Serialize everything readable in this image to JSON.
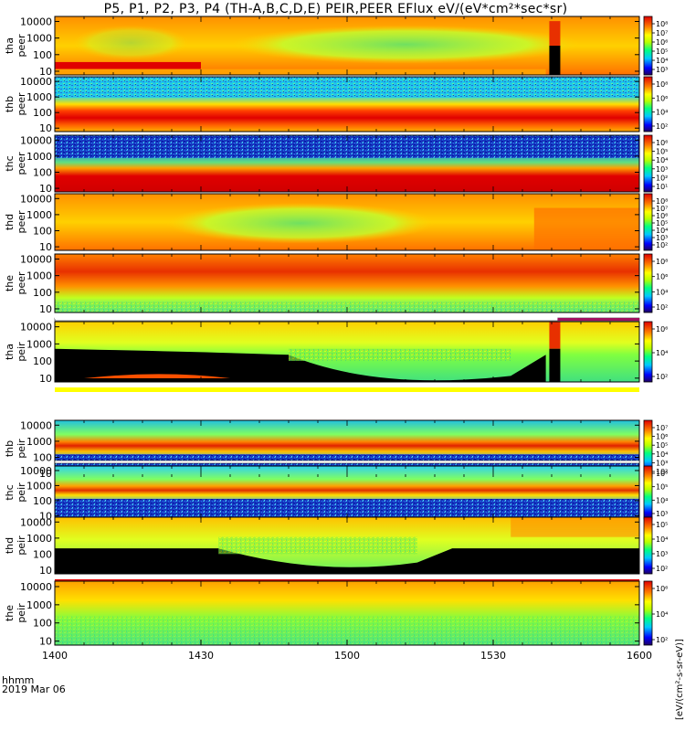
{
  "title": "P5, P1, P2, P3, P4 (TH-A,B,C,D,E) PEIR,PEER EFlux eV/(eV*cm²*sec*sr)",
  "colorbar_title": "[eV/(cm²-s-sr-eV)]",
  "time_labels": {
    "unit": "hhmm",
    "date": "2019 Mar 06"
  },
  "colors": {
    "black": "#000000",
    "white": "#ffffff",
    "red": "#cc0000",
    "purple": "#a01060"
  },
  "chart_data": {
    "type": "heatmap",
    "x": [
      "1400",
      "1430",
      "1500",
      "1530",
      "1600"
    ],
    "xlim": [
      1400,
      1600
    ],
    "panels": [
      {
        "name": "tha peer",
        "line1": "tha",
        "line2": "peer",
        "yticks": [
          "10000",
          "1000",
          "100",
          "10"
        ],
        "cbar": [
          "10⁸",
          "10⁷",
          "10⁶",
          "10⁵",
          "10⁴",
          "10³"
        ]
      },
      {
        "name": "thb peer",
        "line1": "thb",
        "line2": "peer",
        "yticks": [
          "10000",
          "1000",
          "100",
          "10"
        ],
        "cbar": [
          "10⁸",
          "10⁶",
          "10⁴",
          "10²"
        ]
      },
      {
        "name": "thc peer",
        "line1": "thc",
        "line2": "peer",
        "yticks": [
          "10000",
          "1000",
          "100",
          "10"
        ],
        "cbar": [
          "10⁶",
          "10⁵",
          "10⁴",
          "10³",
          "10²",
          "10¹"
        ]
      },
      {
        "name": "thd peer",
        "line1": "thd",
        "line2": "peer",
        "yticks": [
          "10000",
          "1000",
          "100",
          "10"
        ],
        "cbar": [
          "10⁸",
          "10⁷",
          "10⁶",
          "10⁵",
          "10⁴",
          "10³",
          "10²"
        ]
      },
      {
        "name": "the peer",
        "line1": "the",
        "line2": "peer",
        "yticks": [
          "10000",
          "1000",
          "100",
          "10"
        ],
        "cbar": [
          "10⁸",
          "10⁶",
          "10⁴",
          "10²"
        ]
      },
      {
        "name": "tha peir",
        "line1": "tha",
        "line2": "peir",
        "yticks": [
          "10000",
          "1000",
          "100",
          "10"
        ],
        "cbar": [
          "10⁶",
          "10⁴",
          "10²"
        ]
      },
      {
        "name": "thb peir",
        "line1": "thb",
        "line2": "peir",
        "yticks": [
          "10000",
          "1000",
          "100",
          "10"
        ],
        "cbar": [
          "10⁷",
          "10⁶",
          "10⁵",
          "10⁴",
          "10³",
          "10²"
        ]
      },
      {
        "name": "thc peir",
        "line1": "thc",
        "line2": "peir",
        "yticks": [
          "10000",
          "1000",
          "100",
          "10"
        ],
        "cbar": [
          "10⁶",
          "10⁵",
          "10⁴",
          "10³"
        ]
      },
      {
        "name": "thd peir",
        "line1": "thd",
        "line2": "peir",
        "yticks": [
          "10000",
          "1000",
          "100",
          "10"
        ],
        "cbar": [
          "10⁵",
          "10⁴",
          "10³",
          "10²"
        ]
      },
      {
        "name": "the peir",
        "line1": "the",
        "line2": "peir",
        "yticks": [
          "10000",
          "1000",
          "100",
          "10"
        ],
        "cbar": [
          "10⁶",
          "10⁴",
          "10²"
        ]
      }
    ]
  }
}
